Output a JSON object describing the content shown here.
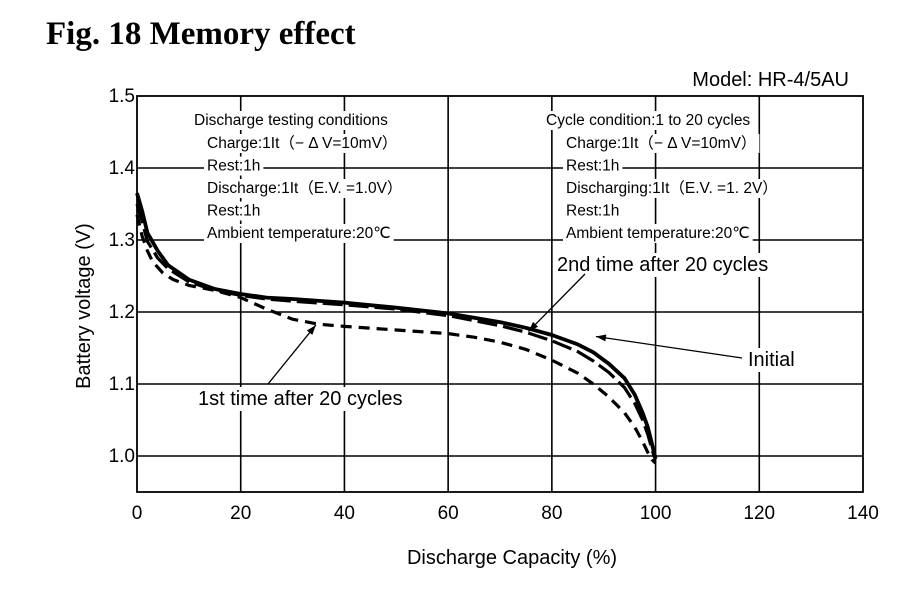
{
  "chart_data": {
    "type": "line",
    "figure_title": "Fig. 18 Memory effect",
    "model": "Model: HR-4/5AU",
    "xlabel": "Discharge  Capacity (%)",
    "ylabel": "Battery voltage (V)",
    "xlim": [
      0,
      140
    ],
    "ylim": [
      0.95,
      1.5
    ],
    "x_ticks": [
      0,
      20,
      40,
      60,
      80,
      100,
      120,
      140
    ],
    "x_tick_labels": [
      "0",
      "20",
      "40",
      "60",
      "80",
      "100",
      "120",
      "140"
    ],
    "y_ticks": [
      1.0,
      1.1,
      1.2,
      1.3,
      1.4,
      1.5
    ],
    "y_tick_labels": [
      "1.0",
      "1.1",
      "1.2",
      "1.3",
      "1.4",
      "1.5"
    ],
    "grid": true,
    "series": [
      {
        "name": "Initial",
        "style": "solid-thick",
        "x": [
          0,
          1,
          2,
          4,
          6,
          10,
          15,
          20,
          25,
          30,
          40,
          50,
          60,
          65,
          70,
          75,
          80,
          85,
          88,
          91,
          94,
          96,
          97.5,
          98.5,
          99.2,
          99.7,
          100
        ],
        "y": [
          1.365,
          1.34,
          1.31,
          1.285,
          1.265,
          1.245,
          1.232,
          1.225,
          1.22,
          1.218,
          1.213,
          1.206,
          1.198,
          1.192,
          1.186,
          1.178,
          1.168,
          1.155,
          1.144,
          1.128,
          1.108,
          1.085,
          1.06,
          1.04,
          1.02,
          1.005,
          0.997
        ]
      },
      {
        "name": "2nd time after 20 cycles",
        "style": "long-dash",
        "x": [
          0,
          1,
          2,
          4,
          6,
          10,
          15,
          20,
          25,
          30,
          40,
          50,
          60,
          65,
          70,
          75,
          80,
          85,
          88,
          91,
          94,
          96,
          97.5,
          98.5,
          99.2,
          99.7,
          100
        ],
        "y": [
          1.35,
          1.325,
          1.298,
          1.275,
          1.26,
          1.242,
          1.23,
          1.223,
          1.218,
          1.215,
          1.21,
          1.204,
          1.195,
          1.188,
          1.181,
          1.172,
          1.16,
          1.145,
          1.132,
          1.116,
          1.095,
          1.073,
          1.05,
          1.03,
          1.012,
          1.0,
          0.995
        ]
      },
      {
        "name": "1st time after 20 cycles",
        "style": "short-dash",
        "x": [
          0,
          1,
          2,
          3,
          5,
          7,
          10,
          15,
          20,
          25,
          30,
          35,
          40,
          50,
          60,
          65,
          70,
          75,
          80,
          85,
          88,
          91,
          94,
          96,
          97.5,
          98.5,
          99.3,
          100
        ],
        "y": [
          1.335,
          1.305,
          1.285,
          1.27,
          1.254,
          1.245,
          1.237,
          1.23,
          1.22,
          1.204,
          1.19,
          1.183,
          1.18,
          1.175,
          1.17,
          1.165,
          1.158,
          1.148,
          1.133,
          1.115,
          1.1,
          1.082,
          1.06,
          1.04,
          1.02,
          1.005,
          0.995,
          0.99
        ]
      }
    ],
    "annotations": [
      {
        "text": "Initial",
        "target_series": "Initial"
      },
      {
        "text": "2nd time after 20 cycles",
        "target_series": "2nd time after 20 cycles"
      },
      {
        "text": "1st time after 20 cycles",
        "target_series": "1st time after 20 cycles"
      }
    ],
    "conditions": {
      "testing": {
        "title": "Discharge testing conditions",
        "lines": [
          "Charge:1It（− Δ V=10mV）",
          "Rest:1h",
          "Discharge:1It（E.V. =1.0V）",
          "Rest:1h",
          "Ambient temperature:20℃"
        ]
      },
      "cycle": {
        "title": "Cycle condition:1 to 20 cycles",
        "lines": [
          "Charge:1It（− Δ V=10mV）",
          "Rest:1h",
          "Discharging:1It（E.V.  =1. 2V）",
          "Rest:1h",
          "Ambient temperature:20℃"
        ]
      }
    }
  }
}
